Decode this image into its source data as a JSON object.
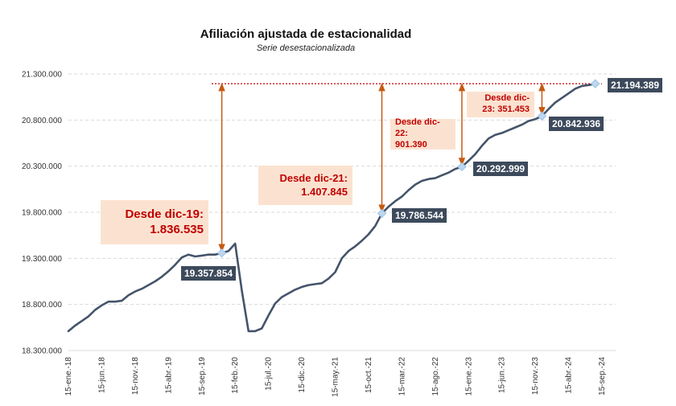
{
  "chart_data": {
    "type": "line",
    "title": "Afiliación ajustada de estacionalidad",
    "subtitle": "Serie desestacionalizada",
    "ylim": [
      18300000,
      21300000
    ],
    "yticks": [
      18300000,
      18800000,
      19300000,
      19800000,
      20300000,
      20800000,
      21300000
    ],
    "ytick_labels": [
      "18.300.000",
      "18.800.000",
      "19.300.000",
      "19.800.000",
      "20.300.000",
      "20.800.000",
      "21.300.000"
    ],
    "xtick_labels": [
      "15-ene.-18",
      "15-jun.-18",
      "15-nov.-18",
      "15-abr.-19",
      "15-sep.-19",
      "15-feb.-20",
      "15-jul.-20",
      "15-dic.-20",
      "15-may.-21",
      "15-oct.-21",
      "15-mar.-22",
      "15-ago.-22",
      "15-ene.-23",
      "15-jun.-23",
      "15-nov.-23",
      "15-abr.-24",
      "15-sep.-24"
    ],
    "grid": true,
    "line_color": "#44546a",
    "series": [
      {
        "x": [
          "15-ene.-18",
          "15-feb.-18",
          "15-mar.-18",
          "15-abr.-18",
          "15-may.-18",
          "15-jun.-18",
          "15-jul.-18",
          "15-ago.-18",
          "15-sep.-18",
          "15-oct.-18",
          "15-nov.-18",
          "15-dic.-18",
          "15-ene.-19",
          "15-feb.-19",
          "15-mar.-19",
          "15-abr.-19",
          "15-may.-19",
          "15-jun.-19",
          "15-jul.-19",
          "15-ago.-19",
          "15-sep.-19",
          "15-oct.-19",
          "15-nov.-19",
          "15-dic.-19",
          "15-ene.-20",
          "15-feb.-20",
          "15-mar.-20",
          "15-abr.-20",
          "15-may.-20",
          "15-jun.-20",
          "15-jul.-20",
          "15-ago.-20",
          "15-sep.-20",
          "15-oct.-20",
          "15-nov.-20",
          "15-dic.-20",
          "15-ene.-21",
          "15-feb.-21",
          "15-mar.-21",
          "15-abr.-21",
          "15-may.-21",
          "15-jun.-21",
          "15-jul.-21",
          "15-ago.-21",
          "15-sep.-21",
          "15-oct.-21",
          "15-nov.-21",
          "15-dic.-21",
          "15-ene.-22",
          "15-feb.-22",
          "15-mar.-22",
          "15-abr.-22",
          "15-may.-22",
          "15-jun.-22",
          "15-jul.-22",
          "15-ago.-22",
          "15-sep.-22",
          "15-oct.-22",
          "15-nov.-22",
          "15-dic.-22",
          "15-ene.-23",
          "15-feb.-23",
          "15-mar.-23",
          "15-abr.-23",
          "15-may.-23",
          "15-jun.-23",
          "15-jul.-23",
          "15-ago.-23",
          "15-sep.-23",
          "15-oct.-23",
          "15-nov.-23",
          "15-dic.-23",
          "15-ene.-24",
          "15-feb.-24",
          "15-mar.-24",
          "15-abr.-24",
          "15-may.-24",
          "15-jun.-24",
          "15-jul.-24",
          "15-ago.-24"
        ],
        "values": [
          18510000,
          18570000,
          18620000,
          18670000,
          18740000,
          18790000,
          18830000,
          18830000,
          18840000,
          18900000,
          18940000,
          18970000,
          19010000,
          19050000,
          19100000,
          19160000,
          19230000,
          19310000,
          19340000,
          19320000,
          19330000,
          19340000,
          19340000,
          19357854,
          19380000,
          19460000,
          18950000,
          18510000,
          18510000,
          18540000,
          18680000,
          18810000,
          18880000,
          18920000,
          18960000,
          18990000,
          19010000,
          19020000,
          19030000,
          19080000,
          19150000,
          19300000,
          19380000,
          19430000,
          19490000,
          19560000,
          19650000,
          19786544,
          19860000,
          19920000,
          19970000,
          20040000,
          20100000,
          20140000,
          20160000,
          20170000,
          20200000,
          20230000,
          20270000,
          20292999,
          20360000,
          20430000,
          20520000,
          20600000,
          20640000,
          20660000,
          20690000,
          20720000,
          20750000,
          20790000,
          20810000,
          20842936,
          20920000,
          20990000,
          21040000,
          21090000,
          21140000,
          21170000,
          21180000,
          21194389
        ]
      }
    ],
    "highlights": [
      {
        "x": "15-dic.-19",
        "value": 19357854,
        "label": "19.357.854"
      },
      {
        "x": "15-dic.-21",
        "value": 19786544,
        "label": "19.786.544"
      },
      {
        "x": "15-dic.-22",
        "value": 20292999,
        "label": "20.292.999"
      },
      {
        "x": "15-dic.-23",
        "value": 20842936,
        "label": "20.842.936"
      },
      {
        "x": "15-ago.-24",
        "value": 21194389,
        "label": "21.194.389"
      }
    ],
    "reference_level": 21194389,
    "annotations": [
      {
        "text": "Desde dic-19:\n1.836.535",
        "from": "15-dic.-19"
      },
      {
        "text": "Desde dic-21:\n1.407.845",
        "from": "15-dic.-21"
      },
      {
        "text": "Desde dic-22:\n901.390",
        "from": "15-dic.-22"
      },
      {
        "text": "Desde dic-\n23: 351.453",
        "from": "15-dic.-23"
      }
    ]
  }
}
